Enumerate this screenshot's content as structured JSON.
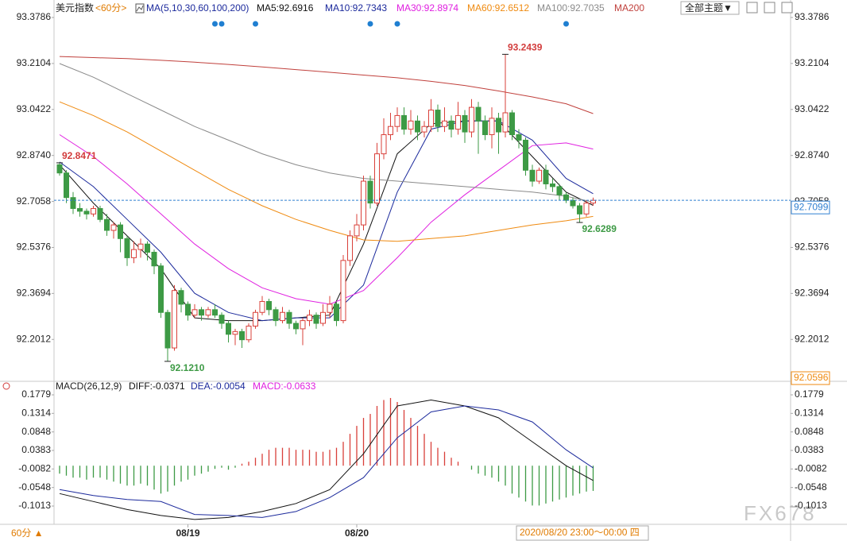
{
  "header": {
    "symbol": "美元指数",
    "period": "<60分>",
    "indicator": "MA(5,10,30,60,100,200)",
    "theme_button": "全部主题▼"
  },
  "chart_data": [
    {
      "type": "candlestick",
      "up_color": "#d9403a",
      "down_color": "#3d9a45",
      "open": [
        92.84,
        92.81,
        92.72,
        92.68,
        92.67,
        92.66,
        92.68,
        92.64,
        92.6,
        92.62,
        92.57,
        92.5,
        92.53,
        92.55,
        92.52,
        92.47,
        92.3,
        92.17,
        92.38,
        92.33,
        92.29,
        92.31,
        92.29,
        92.31,
        92.29,
        92.26,
        92.22,
        92.23,
        92.2,
        92.25,
        92.3,
        92.34,
        92.31,
        92.27,
        92.3,
        92.26,
        92.24,
        92.27,
        92.29,
        92.26,
        92.3,
        92.33,
        92.27,
        92.49,
        92.58,
        92.62,
        92.78,
        92.7,
        92.88,
        92.95,
        92.98,
        93.02,
        92.97,
        93.0,
        92.96,
        92.98,
        93.04,
        92.98,
        93.0,
        92.97,
        93.02,
        92.96,
        93.05,
        93.0,
        92.95,
        93.01,
        92.96,
        93.03,
        92.95,
        92.93,
        92.82,
        92.78,
        92.82,
        92.77,
        92.76,
        92.73,
        92.71,
        92.69,
        92.66,
        92.7
      ],
      "high": [
        92.8471,
        92.82,
        92.74,
        92.7,
        92.68,
        92.69,
        92.69,
        92.66,
        92.63,
        92.63,
        92.58,
        92.56,
        92.57,
        92.56,
        92.53,
        92.48,
        92.31,
        92.4,
        92.39,
        92.34,
        92.33,
        92.32,
        92.32,
        92.33,
        92.3,
        92.27,
        92.24,
        92.24,
        92.26,
        92.31,
        92.36,
        92.35,
        92.32,
        92.32,
        92.31,
        92.27,
        92.28,
        92.31,
        92.3,
        92.33,
        92.36,
        92.34,
        92.51,
        92.6,
        92.66,
        92.8,
        92.8,
        92.92,
        93.01,
        93.03,
        93.05,
        93.05,
        93.04,
        93.02,
        93.0,
        93.08,
        93.06,
        93.05,
        93.02,
        93.07,
        93.04,
        93.08,
        93.07,
        93.02,
        93.05,
        93.03,
        93.2439,
        93.04,
        92.97,
        92.94,
        92.84,
        92.83,
        92.84,
        92.79,
        92.77,
        92.74,
        92.72,
        92.7,
        92.71,
        92.72
      ],
      "low": [
        92.8,
        92.7,
        92.66,
        92.65,
        92.64,
        92.65,
        92.63,
        92.58,
        92.57,
        92.52,
        92.47,
        92.48,
        92.5,
        92.49,
        92.44,
        92.28,
        92.121,
        92.16,
        92.3,
        92.27,
        92.28,
        92.27,
        92.28,
        92.28,
        92.24,
        92.19,
        92.18,
        92.17,
        92.19,
        92.24,
        92.29,
        92.29,
        92.25,
        92.26,
        92.24,
        92.22,
        92.18,
        92.25,
        92.24,
        92.25,
        92.28,
        92.25,
        92.26,
        92.47,
        92.56,
        92.6,
        92.68,
        92.69,
        92.86,
        92.93,
        92.96,
        92.95,
        92.95,
        92.93,
        92.94,
        92.96,
        92.96,
        92.96,
        92.94,
        92.95,
        92.92,
        92.94,
        92.88,
        92.93,
        92.9,
        92.88,
        92.94,
        92.93,
        92.9,
        92.8,
        92.76,
        92.77,
        92.75,
        92.74,
        92.71,
        92.7,
        92.68,
        92.6289,
        92.65,
        92.69
      ],
      "close": [
        92.81,
        92.72,
        92.68,
        92.67,
        92.66,
        92.68,
        92.64,
        92.6,
        92.62,
        92.57,
        92.5,
        92.53,
        92.55,
        92.52,
        92.47,
        92.3,
        92.17,
        92.38,
        92.33,
        92.29,
        92.31,
        92.29,
        92.31,
        92.29,
        92.26,
        92.22,
        92.23,
        92.2,
        92.25,
        92.3,
        92.34,
        92.31,
        92.27,
        92.3,
        92.26,
        92.24,
        92.27,
        92.29,
        92.26,
        92.3,
        92.33,
        92.27,
        92.49,
        92.58,
        92.62,
        92.78,
        92.7,
        92.88,
        92.95,
        92.98,
        93.02,
        92.97,
        93.0,
        92.96,
        92.98,
        93.04,
        92.98,
        93.0,
        92.97,
        93.02,
        92.96,
        93.05,
        93.0,
        92.95,
        93.01,
        92.96,
        93.03,
        92.95,
        92.93,
        92.82,
        92.78,
        92.82,
        92.77,
        92.76,
        92.73,
        92.71,
        92.69,
        92.66,
        92.7,
        92.7099
      ],
      "ma_x": [
        0,
        5,
        10,
        15,
        20,
        25,
        30,
        35,
        40,
        45,
        50,
        55,
        60,
        65,
        70,
        75,
        79
      ],
      "series": [
        {
          "name": "MA5:92.6916",
          "color": "#111111",
          "values": [
            92.84,
            92.7,
            92.58,
            92.46,
            92.28,
            92.27,
            92.27,
            92.28,
            92.29,
            92.55,
            92.88,
            92.99,
            93.0,
            93.0,
            92.87,
            92.74,
            92.6916
          ]
        },
        {
          "name": "MA10:92.7343",
          "color": "#1c2a9c",
          "values": [
            92.85,
            92.76,
            92.64,
            92.52,
            92.37,
            92.3,
            92.27,
            92.28,
            92.28,
            92.4,
            92.74,
            92.97,
            93.0,
            93.0,
            92.93,
            92.79,
            92.7343
          ]
        },
        {
          "name": "MA30:92.8974",
          "color": "#e020e0",
          "values": [
            92.95,
            92.87,
            92.77,
            92.66,
            92.55,
            92.46,
            92.39,
            92.35,
            92.33,
            92.38,
            92.5,
            92.63,
            92.73,
            92.82,
            92.91,
            92.92,
            92.8974
          ]
        },
        {
          "name": "MA60:92.6512",
          "color": "#ef8a10",
          "values": [
            93.07,
            93.02,
            92.96,
            92.89,
            92.82,
            92.75,
            92.69,
            92.64,
            92.6,
            92.565,
            92.56,
            92.57,
            92.58,
            92.6,
            92.62,
            92.635,
            92.6512
          ]
        },
        {
          "name": "MA100:92.7035",
          "color": "#8a8a8a",
          "values": [
            93.21,
            93.16,
            93.1,
            93.04,
            92.98,
            92.93,
            92.88,
            92.84,
            92.81,
            92.79,
            92.78,
            92.77,
            92.76,
            92.75,
            92.74,
            92.725,
            92.7035
          ]
        },
        {
          "name": "MA200",
          "color": "#c0403c",
          "values": [
            93.236,
            93.232,
            93.228,
            93.222,
            93.215,
            93.207,
            93.198,
            93.188,
            93.178,
            93.168,
            93.158,
            93.145,
            93.13,
            93.11,
            93.088,
            93.063,
            93.027
          ]
        }
      ],
      "ylim": [
        92.0596,
        93.428
      ],
      "yticks": [
        93.3786,
        93.2104,
        93.0422,
        {
          "value": 92.874,
          "label": "92.8740"
        },
        92.7058,
        92.5376,
        92.3694,
        92.2012
      ],
      "current_price": 92.7099,
      "current_price_color": "#2f7fd0",
      "annotations": [
        {
          "index": 66,
          "value": 93.2439,
          "color": "#d23c3c"
        },
        {
          "index": 0,
          "value": 92.8471,
          "color": "#d23c3c"
        },
        {
          "index": 16,
          "value": 92.121,
          "label": "92.1210",
          "color": "#3d9a45"
        },
        {
          "index": 77,
          "value": 92.6289,
          "color": "#3d9a45"
        }
      ],
      "event_markers": [
        23,
        24,
        29,
        46,
        50,
        75
      ],
      "event_color": "#1f7fd1",
      "x_labels": [
        {
          "index": 19,
          "label": "08/19"
        },
        {
          "index": 44,
          "label": "08/20"
        }
      ]
    },
    {
      "type": "macd",
      "title": "MACD(26,12,9)",
      "up_color": "#d9403a",
      "down_color": "#3d9a45",
      "x": [
        0,
        5,
        10,
        15,
        20,
        25,
        30,
        35,
        40,
        45,
        50,
        55,
        60,
        65,
        70,
        75,
        79
      ],
      "series": [
        {
          "name": "DIFF:-0.0371",
          "color": "#111111",
          "values": [
            -0.07,
            -0.09,
            -0.11,
            -0.125,
            -0.135,
            -0.13,
            -0.115,
            -0.095,
            -0.06,
            0.03,
            0.15,
            0.165,
            0.15,
            0.12,
            0.06,
            0.0,
            -0.0371
          ]
        },
        {
          "name": "DEA:-0.0054",
          "color": "#1c2a9c",
          "values": [
            -0.06,
            -0.075,
            -0.085,
            -0.09,
            -0.1225,
            -0.125,
            -0.13,
            -0.115,
            -0.08,
            -0.03,
            0.07,
            0.135,
            0.15,
            0.14,
            0.11,
            0.04,
            -0.0054
          ]
        }
      ],
      "histogram": {
        "name": "MACD:-0.0633",
        "color": "#e020e0",
        "values": [
          -0.02,
          -0.025,
          -0.03,
          -0.03,
          -0.035,
          -0.03,
          -0.03,
          -0.035,
          -0.04,
          -0.045,
          -0.05,
          -0.05,
          -0.045,
          -0.05,
          -0.06,
          -0.07,
          -0.065,
          -0.05,
          -0.04,
          -0.035,
          -0.025,
          -0.02,
          -0.015,
          -0.008,
          -0.005,
          -0.01,
          -0.005,
          0.005,
          0.01,
          0.02,
          0.03,
          0.04,
          0.045,
          0.045,
          0.045,
          0.04,
          0.04,
          0.04,
          0.035,
          0.035,
          0.04,
          0.045,
          0.06,
          0.08,
          0.1,
          0.12,
          0.13,
          0.15,
          0.165,
          0.17,
          0.16,
          0.14,
          0.12,
          0.1,
          0.08,
          0.06,
          0.045,
          0.035,
          0.02,
          0.01,
          0.0,
          -0.01,
          -0.02,
          -0.025,
          -0.03,
          -0.04,
          -0.05,
          -0.07,
          -0.08,
          -0.09,
          -0.1,
          -0.1,
          -0.095,
          -0.09,
          -0.085,
          -0.08,
          -0.075,
          -0.07,
          -0.065,
          -0.0633
        ]
      },
      "ylim": [
        -0.1472,
        0.1959
      ],
      "yticks": [
        0.1779,
        0.1314,
        0.0848,
        0.0383,
        -0.0082,
        -0.0548,
        -0.1013
      ]
    }
  ],
  "footer": {
    "period_button": "60分 ▲",
    "time_range": "2020/08/20 23:00～00:00 四",
    "watermark": "FX678"
  }
}
